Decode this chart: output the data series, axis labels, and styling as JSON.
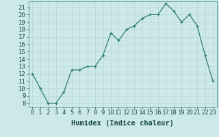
{
  "x": [
    0,
    1,
    2,
    3,
    4,
    5,
    6,
    7,
    8,
    9,
    10,
    11,
    12,
    13,
    14,
    15,
    16,
    17,
    18,
    19,
    20,
    21,
    22,
    23
  ],
  "y": [
    12,
    10,
    8,
    8,
    9.5,
    12.5,
    12.5,
    13,
    13,
    14.5,
    17.5,
    16.5,
    18,
    18.5,
    19.5,
    20,
    20,
    21.5,
    20.5,
    19,
    20,
    18.5,
    14.5,
    11
  ],
  "line_color": "#2e7d6e",
  "marker": "+",
  "bg_color": "#cde8e8",
  "grid_color": "#b8d8d8",
  "xlabel": "Humidex (Indice chaleur)",
  "ylim": [
    7.5,
    21.8
  ],
  "xlim": [
    -0.5,
    23.5
  ],
  "yticks": [
    8,
    9,
    10,
    11,
    12,
    13,
    14,
    15,
    16,
    17,
    18,
    19,
    20,
    21
  ],
  "xtick_labels": [
    "0",
    "1",
    "2",
    "3",
    "4",
    "5",
    "6",
    "7",
    "8",
    "9",
    "10",
    "11",
    "12",
    "13",
    "14",
    "15",
    "16",
    "17",
    "18",
    "19",
    "20",
    "21",
    "22",
    "23"
  ],
  "xlabel_fontsize": 7.5,
  "tick_fontsize": 6.5,
  "line_width": 0.9,
  "marker_size": 3,
  "marker_edge_width": 0.9
}
